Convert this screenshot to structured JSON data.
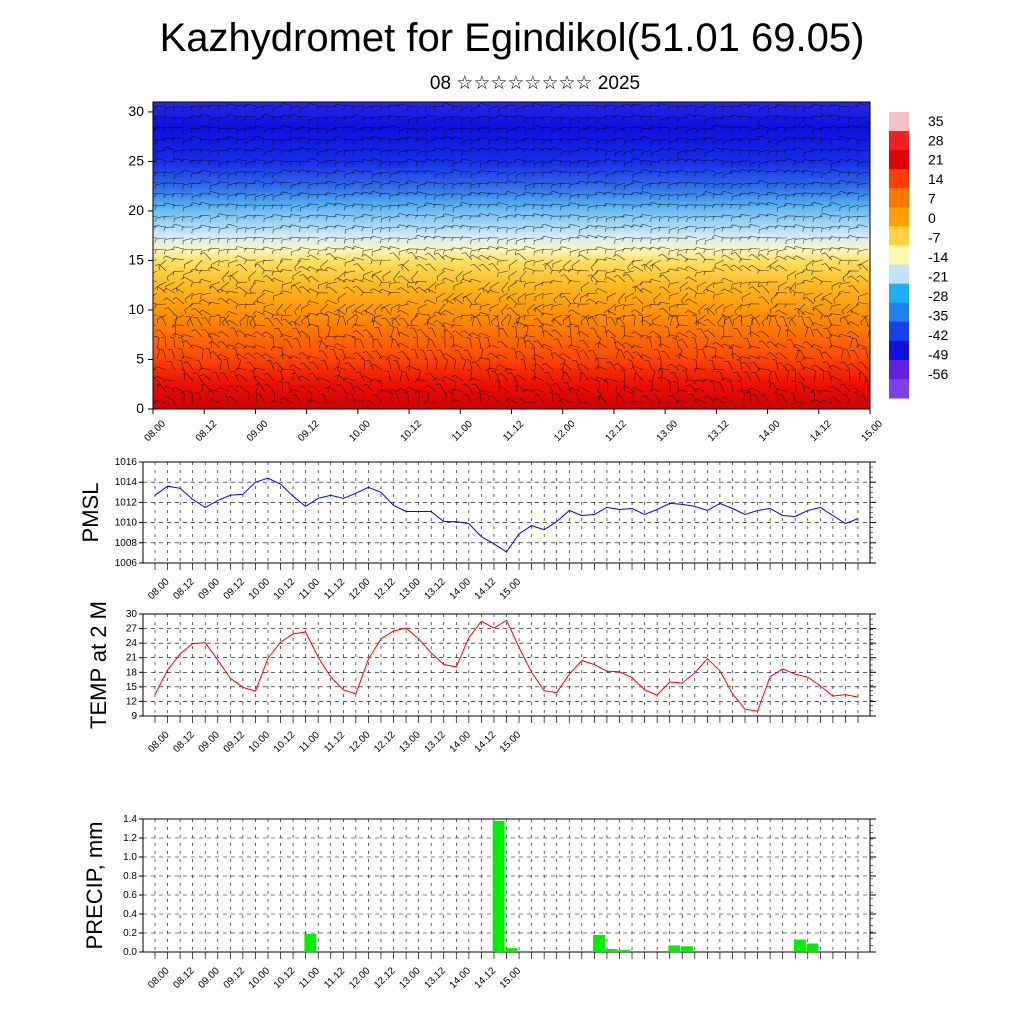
{
  "title": "Kazhydromet for Egindikol(51.01 69.05)",
  "subtitle": "08 ☆☆☆☆☆☆☆☆ 2025",
  "colors": {
    "pmsl_line": "#0000ff",
    "temp_line": "#ff0000",
    "precip_bar": "#00ee00",
    "wind_barb": "#000000"
  },
  "chart_data": [
    {
      "type": "heatmap",
      "name": "cross-section",
      "x_tick_labels": [
        "08.00",
        "08.12",
        "09.00",
        "09.12",
        "10.00",
        "10.12",
        "11.00",
        "11.12",
        "12.00",
        "12.12",
        "13.00",
        "13.12",
        "14.00",
        "14.12",
        "15.00"
      ],
      "y_ticks": [
        0,
        5,
        10,
        15,
        20,
        25,
        30
      ],
      "ylim": [
        0,
        31
      ],
      "colorbar_labels": [
        "35",
        "28",
        "21",
        "14",
        "7",
        "0",
        "-7",
        "-14",
        "-21",
        "-28",
        "-35",
        "-42",
        "-49",
        "-56"
      ],
      "colorbar_range": [
        -63,
        42
      ],
      "overlay": "wind barbs"
    },
    {
      "type": "line",
      "name": "pmsl",
      "ylabel": "PMSL",
      "ylim": [
        1006,
        1016
      ],
      "y_ticks": [
        1006,
        1008,
        1010,
        1012,
        1014,
        1016
      ],
      "x_tick_labels": [
        "08.00",
        "08.12",
        "09.00",
        "09.12",
        "10.00",
        "10.12",
        "11.00",
        "11.12",
        "12.00",
        "12.12",
        "13.00",
        "13.12",
        "14.00",
        "14.12",
        "15.00"
      ],
      "x_step_hours": 6,
      "values": [
        1012.7,
        1013.6,
        1013.4,
        1012.3,
        1011.5,
        1012.2,
        1012.7,
        1012.8,
        1014.0,
        1014.4,
        1013.8,
        1012.6,
        1011.6,
        1012.4,
        1012.7,
        1012.4,
        1012.9,
        1013.5,
        1013.0,
        1011.7,
        1011.1,
        1011.1,
        1011.1,
        1010.1,
        1010.1,
        1009.9,
        1008.6,
        1007.9,
        1007.1,
        1008.9,
        1009.7,
        1009.3,
        1010.1,
        1011.2,
        1010.7,
        1010.8,
        1011.5,
        1011.3,
        1011.4,
        1010.8,
        1011.3,
        1011.9,
        1011.8,
        1011.6,
        1011.2,
        1011.9,
        1011.4,
        1010.8,
        1011.2,
        1011.4,
        1010.7,
        1010.6,
        1011.2,
        1011.5,
        1010.7,
        1009.9,
        1010.4
      ]
    },
    {
      "type": "line",
      "name": "temp",
      "ylabel": "TEMP at 2 M",
      "ylim": [
        9,
        30
      ],
      "y_ticks": [
        9,
        12,
        15,
        18,
        21,
        24,
        27,
        30
      ],
      "x_tick_labels": [
        "08.00",
        "08.12",
        "09.00",
        "09.12",
        "10.00",
        "10.12",
        "11.00",
        "11.12",
        "12.00",
        "12.12",
        "13.00",
        "13.12",
        "14.00",
        "14.12",
        "15.00"
      ],
      "x_step_hours": 6,
      "values": [
        13.4,
        18.5,
        21.8,
        23.9,
        24.1,
        20.5,
        16.8,
        14.9,
        14.1,
        20.9,
        24.2,
        25.9,
        26.3,
        21.1,
        17.0,
        14.4,
        13.6,
        20.7,
        24.9,
        26.5,
        27.1,
        24.9,
        22.0,
        19.6,
        19.1,
        25.1,
        28.5,
        27.1,
        28.7,
        23.1,
        18.0,
        14.2,
        13.8,
        17.6,
        20.4,
        19.6,
        18.2,
        18.1,
        16.9,
        14.4,
        13.3,
        16.0,
        15.8,
        17.9,
        20.8,
        18.3,
        13.6,
        10.4,
        10.0,
        17.1,
        18.7,
        17.6,
        17.0,
        15.2,
        13.1,
        13.4,
        12.9
      ]
    },
    {
      "type": "bar",
      "name": "precip",
      "ylabel": "PRECIP, mm",
      "ylim": [
        0,
        1.4
      ],
      "y_ticks": [
        "0.0",
        "0.2",
        "0.4",
        "0.6",
        "0.8",
        "1.0",
        "1.2",
        "1.4"
      ],
      "x_tick_labels": [
        "08.00",
        "08.12",
        "09.00",
        "09.12",
        "10.00",
        "10.12",
        "11.00",
        "11.12",
        "12.00",
        "12.12",
        "13.00",
        "13.12",
        "14.00",
        "14.12",
        "15.00"
      ],
      "x_step_hours": 6,
      "values": [
        0,
        0,
        0,
        0,
        0,
        0,
        0,
        0,
        0,
        0,
        0,
        0,
        0.19,
        0,
        0,
        0,
        0,
        0,
        0,
        0,
        0,
        0.01,
        0,
        0,
        0,
        0,
        0,
        1.38,
        0.04,
        0,
        0,
        0,
        0,
        0,
        0,
        0.18,
        0.03,
        0.02,
        0,
        0,
        0,
        0.07,
        0.06,
        0,
        0,
        0,
        0,
        0,
        0,
        0,
        0,
        0.13,
        0.09,
        0,
        0,
        0.01,
        0.01
      ]
    }
  ]
}
